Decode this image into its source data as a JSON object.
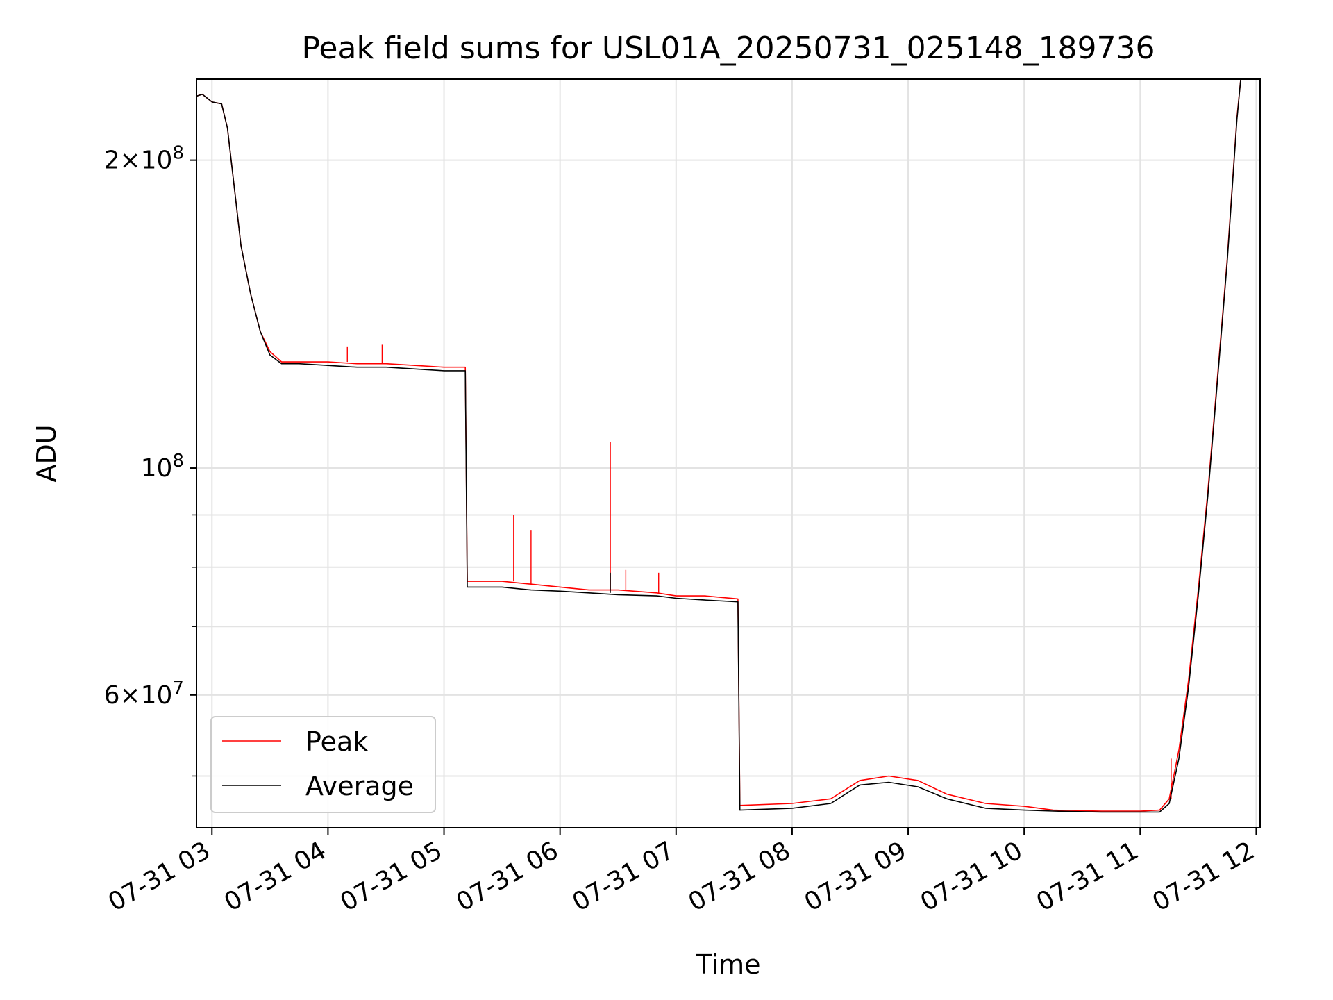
{
  "chart_data": {
    "type": "line",
    "title": "Peak field sums for USL01A_20250731_025148_189736",
    "xlabel": "Time",
    "ylabel": "ADU",
    "y_scale": "log",
    "ylim": [
      44500000,
      240000000
    ],
    "xlim": [
      "2025-07-31 02:52",
      "2025-07-31 12:02"
    ],
    "grid": true,
    "legend_position": "lower-left",
    "x_ticks": [
      {
        "t": "2025-07-31 03:00",
        "label": "07-31 03"
      },
      {
        "t": "2025-07-31 04:00",
        "label": "07-31 04"
      },
      {
        "t": "2025-07-31 05:00",
        "label": "07-31 05"
      },
      {
        "t": "2025-07-31 06:00",
        "label": "07-31 06"
      },
      {
        "t": "2025-07-31 07:00",
        "label": "07-31 07"
      },
      {
        "t": "2025-07-31 08:00",
        "label": "07-31 08"
      },
      {
        "t": "2025-07-31 09:00",
        "label": "07-31 09"
      },
      {
        "t": "2025-07-31 10:00",
        "label": "07-31 10"
      },
      {
        "t": "2025-07-31 11:00",
        "label": "07-31 11"
      },
      {
        "t": "2025-07-31 12:00",
        "label": "07-31 12"
      }
    ],
    "y_ticks": [
      {
        "value": 60000000,
        "mantissa": "6",
        "exponent": "7"
      },
      {
        "value": 100000000,
        "mantissa": "",
        "exponent": "8"
      },
      {
        "value": 200000000,
        "mantissa": "2",
        "exponent": "8"
      }
    ],
    "y_minor_ticks": [
      50000000,
      70000000,
      80000000,
      90000000
    ],
    "series": [
      {
        "name": "Peak",
        "color": "#ff0000",
        "points": [
          [
            "2025-07-31 02:52",
            231000000
          ],
          [
            "2025-07-31 02:55",
            232000000
          ],
          [
            "2025-07-31 03:00",
            228000000
          ],
          [
            "2025-07-31 03:05",
            227000000
          ],
          [
            "2025-07-31 03:08",
            215000000
          ],
          [
            "2025-07-31 03:12",
            185000000
          ],
          [
            "2025-07-31 03:15",
            165000000
          ],
          [
            "2025-07-31 03:20",
            148000000
          ],
          [
            "2025-07-31 03:25",
            136000000
          ],
          [
            "2025-07-31 03:30",
            130000000
          ],
          [
            "2025-07-31 03:36",
            127000000
          ],
          [
            "2025-07-31 03:45",
            127000000
          ],
          [
            "2025-07-31 04:00",
            127000000
          ],
          [
            "2025-07-31 04:15",
            126500000
          ],
          [
            "2025-07-31 04:30",
            126500000
          ],
          [
            "2025-07-31 04:45",
            126000000
          ],
          [
            "2025-07-31 05:00",
            125500000
          ],
          [
            "2025-07-31 05:11",
            125500000
          ],
          [
            "2025-07-31 05:12",
            77500000
          ],
          [
            "2025-07-31 05:30",
            77500000
          ],
          [
            "2025-07-31 05:45",
            77000000
          ],
          [
            "2025-07-31 06:00",
            76500000
          ],
          [
            "2025-07-31 06:15",
            76000000
          ],
          [
            "2025-07-31 06:30",
            76000000
          ],
          [
            "2025-07-31 06:50",
            75500000
          ],
          [
            "2025-07-31 07:00",
            75000000
          ],
          [
            "2025-07-31 07:15",
            75000000
          ],
          [
            "2025-07-31 07:32",
            74500000
          ],
          [
            "2025-07-31 07:33",
            46800000
          ],
          [
            "2025-07-31 08:00",
            47000000
          ],
          [
            "2025-07-31 08:20",
            47500000
          ],
          [
            "2025-07-31 08:35",
            49500000
          ],
          [
            "2025-07-31 08:50",
            50000000
          ],
          [
            "2025-07-31 09:05",
            49500000
          ],
          [
            "2025-07-31 09:20",
            48000000
          ],
          [
            "2025-07-31 09:40",
            47000000
          ],
          [
            "2025-07-31 10:00",
            46700000
          ],
          [
            "2025-07-31 10:15",
            46300000
          ],
          [
            "2025-07-31 10:40",
            46200000
          ],
          [
            "2025-07-31 11:00",
            46200000
          ],
          [
            "2025-07-31 11:10",
            46300000
          ],
          [
            "2025-07-31 11:15",
            47500000
          ],
          [
            "2025-07-31 11:20",
            53000000
          ],
          [
            "2025-07-31 11:25",
            62000000
          ],
          [
            "2025-07-31 11:30",
            76000000
          ],
          [
            "2025-07-31 11:35",
            95000000
          ],
          [
            "2025-07-31 11:40",
            123000000
          ],
          [
            "2025-07-31 11:45",
            160000000
          ],
          [
            "2025-07-31 11:50",
            220000000
          ],
          [
            "2025-07-31 11:52",
            240000000
          ]
        ],
        "spikes": [
          [
            "2025-07-31 04:10",
            131500000
          ],
          [
            "2025-07-31 04:28",
            132000000
          ],
          [
            "2025-07-31 05:36",
            90000000
          ],
          [
            "2025-07-31 05:45",
            87000000
          ],
          [
            "2025-07-31 06:26",
            106000000
          ],
          [
            "2025-07-31 06:34",
            79500000
          ],
          [
            "2025-07-31 06:51",
            79000000
          ],
          [
            "2025-07-31 11:16",
            52000000
          ]
        ]
      },
      {
        "name": "Average",
        "color": "#000000",
        "points": [
          [
            "2025-07-31 02:52",
            231000000
          ],
          [
            "2025-07-31 02:55",
            232000000
          ],
          [
            "2025-07-31 03:00",
            228000000
          ],
          [
            "2025-07-31 03:05",
            227000000
          ],
          [
            "2025-07-31 03:08",
            215000000
          ],
          [
            "2025-07-31 03:12",
            185000000
          ],
          [
            "2025-07-31 03:15",
            165000000
          ],
          [
            "2025-07-31 03:20",
            148000000
          ],
          [
            "2025-07-31 03:25",
            136000000
          ],
          [
            "2025-07-31 03:30",
            129000000
          ],
          [
            "2025-07-31 03:36",
            126500000
          ],
          [
            "2025-07-31 03:45",
            126500000
          ],
          [
            "2025-07-31 04:00",
            126000000
          ],
          [
            "2025-07-31 04:15",
            125500000
          ],
          [
            "2025-07-31 04:30",
            125500000
          ],
          [
            "2025-07-31 04:45",
            125000000
          ],
          [
            "2025-07-31 05:00",
            124500000
          ],
          [
            "2025-07-31 05:11",
            124500000
          ],
          [
            "2025-07-31 05:12",
            76500000
          ],
          [
            "2025-07-31 05:30",
            76500000
          ],
          [
            "2025-07-31 05:45",
            76000000
          ],
          [
            "2025-07-31 06:00",
            75800000
          ],
          [
            "2025-07-31 06:15",
            75500000
          ],
          [
            "2025-07-31 06:30",
            75200000
          ],
          [
            "2025-07-31 06:50",
            75000000
          ],
          [
            "2025-07-31 07:00",
            74600000
          ],
          [
            "2025-07-31 07:15",
            74300000
          ],
          [
            "2025-07-31 07:32",
            74000000
          ],
          [
            "2025-07-31 07:33",
            46300000
          ],
          [
            "2025-07-31 08:00",
            46500000
          ],
          [
            "2025-07-31 08:20",
            47000000
          ],
          [
            "2025-07-31 08:35",
            49000000
          ],
          [
            "2025-07-31 08:50",
            49300000
          ],
          [
            "2025-07-31 09:05",
            48800000
          ],
          [
            "2025-07-31 09:20",
            47500000
          ],
          [
            "2025-07-31 09:40",
            46500000
          ],
          [
            "2025-07-31 10:00",
            46300000
          ],
          [
            "2025-07-31 10:15",
            46200000
          ],
          [
            "2025-07-31 10:40",
            46100000
          ],
          [
            "2025-07-31 11:00",
            46100000
          ],
          [
            "2025-07-31 11:10",
            46100000
          ],
          [
            "2025-07-31 11:15",
            47000000
          ],
          [
            "2025-07-31 11:20",
            52000000
          ],
          [
            "2025-07-31 11:25",
            61000000
          ],
          [
            "2025-07-31 11:30",
            75000000
          ],
          [
            "2025-07-31 11:35",
            94000000
          ],
          [
            "2025-07-31 11:40",
            122000000
          ],
          [
            "2025-07-31 11:45",
            159000000
          ],
          [
            "2025-07-31 11:50",
            219000000
          ],
          [
            "2025-07-31 11:52",
            240000000
          ]
        ],
        "spikes": [
          [
            "2025-07-31 06:26",
            79000000
          ]
        ]
      }
    ]
  }
}
